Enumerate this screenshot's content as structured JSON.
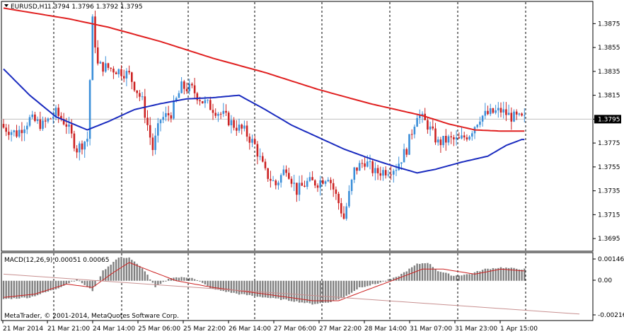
{
  "header": {
    "symbol": "EURUSD,H1",
    "ohlc": "1.3794 1.3796 1.3792 1.3795"
  },
  "price_axis": {
    "ticks": [
      "1.3875",
      "1.3855",
      "1.3835",
      "1.3815",
      "1.3795",
      "1.3775",
      "1.3755",
      "1.3735",
      "1.3715",
      "1.3695"
    ],
    "current_price": "1.3795"
  },
  "macd_panel": {
    "label": "MACD(12,26,9) 0.00051 0.00065",
    "ticks": [
      "0.00146",
      "0.00",
      "-0.00216"
    ]
  },
  "time_axis": {
    "labels": [
      "21 Mar 2014",
      "21 Mar 21:00",
      "24 Mar 14:00",
      "25 Mar 06:00",
      "25 Mar 22:00",
      "26 Mar 14:00",
      "27 Mar 06:00",
      "27 Mar 22:00",
      "28 Mar 14:00",
      "31 Mar 07:00",
      "31 Mar 23:00",
      "1 Apr 15:00"
    ]
  },
  "copyright": "MetaTrader, © 2001-2014, MetaQuotes Software Corp.",
  "colors": {
    "bull": "#3b8fd9",
    "bear": "#cc2222",
    "ma_slow": "#e02020",
    "ma_fast": "#1a2bbf",
    "macd_hist": "#808080",
    "macd_signal": "#cc2222",
    "trend_line": "#c89090"
  },
  "chart_data": {
    "type": "candlestick",
    "price_range": [
      1.3685,
      1.3893
    ],
    "macd_range": [
      -0.00235,
      0.00165
    ],
    "x_labels": [
      "21 Mar 2014",
      "21 Mar 21:00",
      "24 Mar 14:00",
      "25 Mar 06:00",
      "25 Mar 22:00",
      "26 Mar 14:00",
      "27 Mar 06:00",
      "27 Mar 22:00",
      "28 Mar 14:00",
      "31 Mar 07:00",
      "31 Mar 23:00",
      "1 Apr 15:00"
    ],
    "close_anchors": [
      [
        0,
        1.3788
      ],
      [
        5,
        1.3783
      ],
      [
        10,
        1.3795
      ],
      [
        15,
        1.379
      ],
      [
        20,
        1.38
      ],
      [
        24,
        1.3791
      ],
      [
        28,
        1.377
      ],
      [
        32,
        1.3779
      ],
      [
        34,
        1.3877
      ],
      [
        36,
        1.384
      ],
      [
        40,
        1.3838
      ],
      [
        45,
        1.3835
      ],
      [
        48,
        1.3832
      ],
      [
        53,
        1.381
      ],
      [
        57,
        1.377
      ],
      [
        60,
        1.3795
      ],
      [
        64,
        1.38
      ],
      [
        68,
        1.3822
      ],
      [
        72,
        1.382
      ],
      [
        76,
        1.381
      ],
      [
        80,
        1.3804
      ],
      [
        84,
        1.3798
      ],
      [
        88,
        1.379
      ],
      [
        92,
        1.3785
      ],
      [
        96,
        1.3773
      ],
      [
        100,
        1.375
      ],
      [
        104,
        1.374
      ],
      [
        108,
        1.3755
      ],
      [
        112,
        1.3735
      ],
      [
        116,
        1.3742
      ],
      [
        120,
        1.3742
      ],
      [
        124,
        1.3748
      ],
      [
        128,
        1.3725
      ],
      [
        130,
        1.3712
      ],
      [
        134,
        1.3752
      ],
      [
        138,
        1.376
      ],
      [
        142,
        1.375
      ],
      [
        146,
        1.3752
      ],
      [
        150,
        1.3755
      ],
      [
        154,
        1.377
      ],
      [
        158,
        1.38
      ],
      [
        162,
        1.379
      ],
      [
        166,
        1.3775
      ],
      [
        170,
        1.3778
      ],
      [
        174,
        1.3777
      ],
      [
        178,
        1.3783
      ],
      [
        182,
        1.3797
      ],
      [
        186,
        1.38
      ],
      [
        190,
        1.3802
      ],
      [
        194,
        1.3797
      ],
      [
        198,
        1.3795
      ]
    ],
    "ma_slow": [
      [
        0,
        1.3888
      ],
      [
        25,
        1.3879
      ],
      [
        40,
        1.3872
      ],
      [
        60,
        1.386
      ],
      [
        80,
        1.3846
      ],
      [
        100,
        1.3834
      ],
      [
        120,
        1.382
      ],
      [
        140,
        1.3808
      ],
      [
        160,
        1.3798
      ],
      [
        170,
        1.3791
      ],
      [
        180,
        1.3786
      ],
      [
        190,
        1.3785
      ],
      [
        198,
        1.3785
      ]
    ],
    "ma_fast": [
      [
        0,
        1.3837
      ],
      [
        10,
        1.3815
      ],
      [
        20,
        1.3797
      ],
      [
        32,
        1.3786
      ],
      [
        40,
        1.3793
      ],
      [
        50,
        1.3803
      ],
      [
        60,
        1.3808
      ],
      [
        70,
        1.3812
      ],
      [
        80,
        1.3813
      ],
      [
        90,
        1.3815
      ],
      [
        100,
        1.3803
      ],
      [
        110,
        1.379
      ],
      [
        120,
        1.378
      ],
      [
        130,
        1.377
      ],
      [
        140,
        1.3762
      ],
      [
        150,
        1.3755
      ],
      [
        158,
        1.375
      ],
      [
        165,
        1.3753
      ],
      [
        175,
        1.3759
      ],
      [
        185,
        1.3764
      ],
      [
        192,
        1.3773
      ],
      [
        198,
        1.3778
      ]
    ],
    "macd_hist": [
      [
        0,
        -0.0011
      ],
      [
        10,
        -0.001
      ],
      [
        20,
        -0.0005
      ],
      [
        28,
        0.0001
      ],
      [
        34,
        -0.0006
      ],
      [
        38,
        0.0006
      ],
      [
        44,
        0.0014
      ],
      [
        48,
        0.0014
      ],
      [
        54,
        0.0006
      ],
      [
        58,
        -0.0004
      ],
      [
        64,
        0.0002
      ],
      [
        72,
        0.0002
      ],
      [
        80,
        -0.0005
      ],
      [
        90,
        -0.0008
      ],
      [
        100,
        -0.001
      ],
      [
        110,
        -0.0012
      ],
      [
        118,
        -0.0014
      ],
      [
        124,
        -0.0013
      ],
      [
        130,
        -0.001
      ],
      [
        136,
        -0.0004
      ],
      [
        142,
        -0.0002
      ],
      [
        150,
        0.0002
      ],
      [
        158,
        0.001
      ],
      [
        162,
        0.0011
      ],
      [
        166,
        0.0006
      ],
      [
        172,
        0.0003
      ],
      [
        178,
        0.0004
      ],
      [
        184,
        0.0007
      ],
      [
        190,
        0.0008
      ],
      [
        198,
        0.0007
      ]
    ],
    "macd_signal": [
      [
        0,
        -0.001
      ],
      [
        12,
        -0.0008
      ],
      [
        24,
        -0.0002
      ],
      [
        34,
        -0.0004
      ],
      [
        42,
        0.0005
      ],
      [
        48,
        0.0011
      ],
      [
        56,
        0.0006
      ],
      [
        66,
        0.0
      ],
      [
        80,
        -0.0004
      ],
      [
        100,
        -0.0008
      ],
      [
        118,
        -0.0012
      ],
      [
        128,
        -0.0012
      ],
      [
        138,
        -0.0006
      ],
      [
        150,
        0.0001
      ],
      [
        160,
        0.0007
      ],
      [
        168,
        0.0007
      ],
      [
        180,
        0.0004
      ],
      [
        190,
        0.0007
      ],
      [
        198,
        0.0006
      ]
    ],
    "macd_trend_line": [
      [
        0,
        0.0004
      ],
      [
        220,
        -0.002
      ]
    ]
  }
}
